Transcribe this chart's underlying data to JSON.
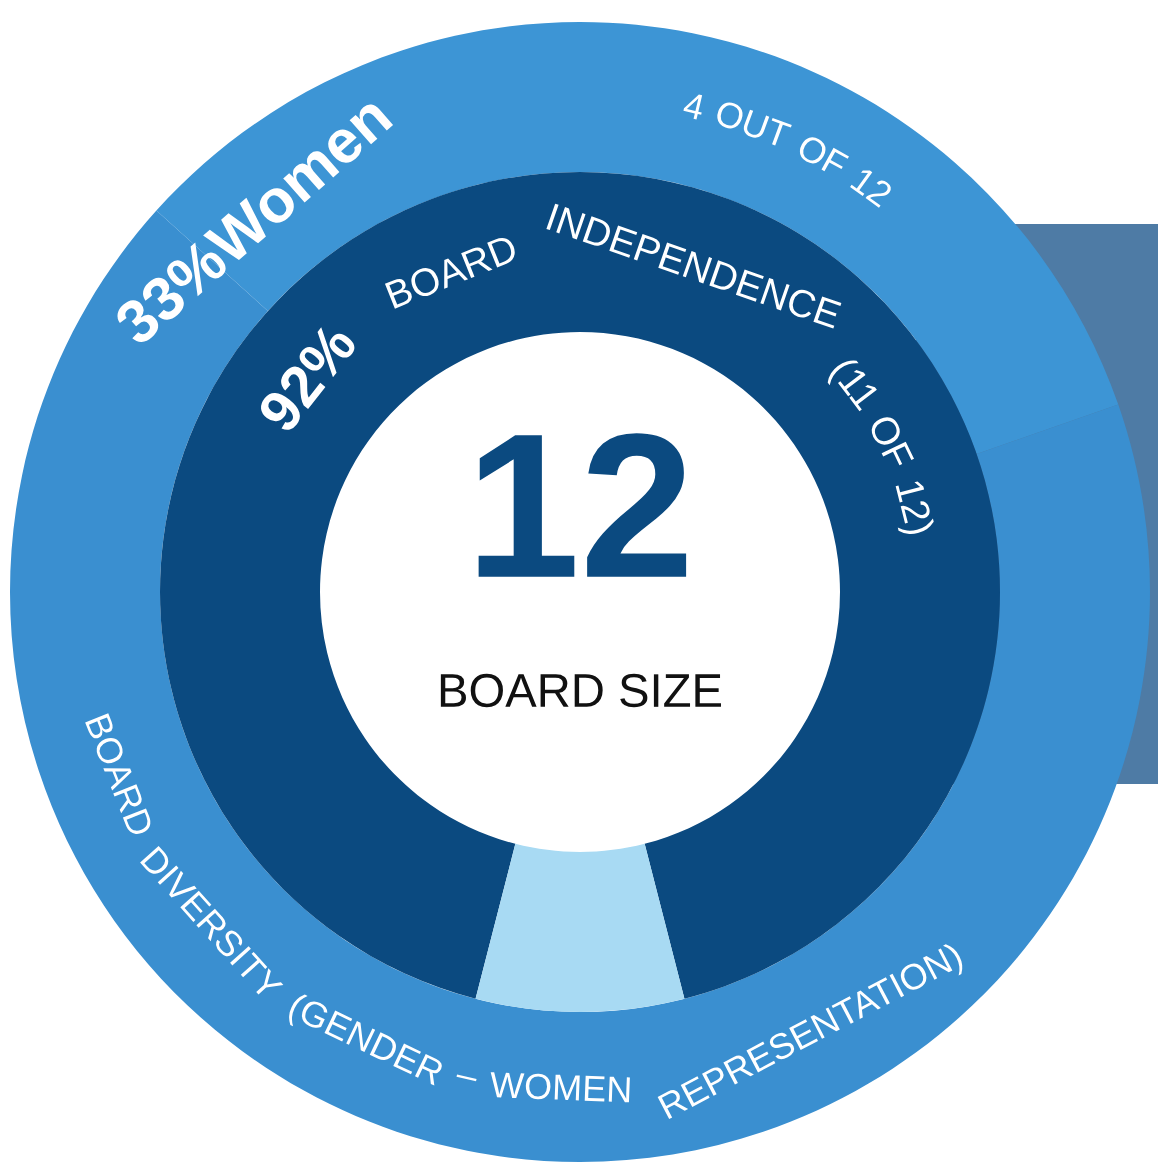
{
  "chart_data": [
    {
      "type": "donut",
      "categories": [
        null,
        null
      ],
      "series": [
        {
          "values": [
            33,
            67
          ],
          "colors": [
            "#3d95d5",
            "#3a8fd0"
          ]
        },
        {
          "values": [
            92,
            8
          ],
          "colors": [
            "#0b4a80",
            "#a8daf3"
          ]
        }
      ],
      "annotations": [
        "33%Women",
        "4 OUT OF 12",
        "BOARD DIVERSITY (GENDER – WOMEN REPRESENTATION)",
        "92%",
        "BOARD INDEPENDENCE (11 OF 12)"
      ]
    },
    {
      "type": "other",
      "annotations": [
        "12",
        "BOARD SIZE"
      ]
    }
  ]
}
